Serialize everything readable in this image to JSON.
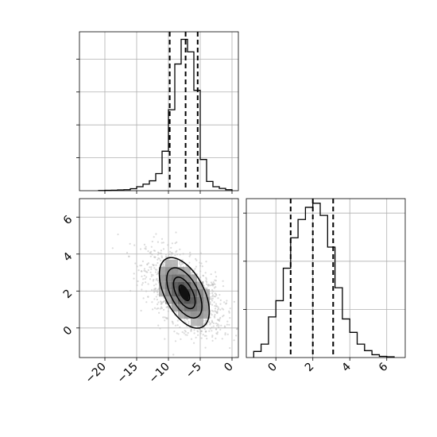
{
  "chart_data": [
    {
      "type": "histogram",
      "panel": "top-left",
      "variable": "x",
      "xlim": [
        -24,
        1
      ],
      "bin_width": 1,
      "bins": [
        [
          -21,
          -20,
          0.005
        ],
        [
          -20,
          -19,
          0.01
        ],
        [
          -19,
          -18,
          0.015
        ],
        [
          -18,
          -17,
          0.025
        ],
        [
          -17,
          -16,
          0.03
        ],
        [
          -16,
          -15,
          0.06
        ],
        [
          -15,
          -14,
          0.12
        ],
        [
          -14,
          -13,
          0.2
        ],
        [
          -13,
          -12,
          0.3
        ],
        [
          -12,
          -11,
          0.52
        ],
        [
          -11,
          -10,
          1.2
        ],
        [
          -10,
          -9,
          2.46
        ],
        [
          -9,
          -8,
          3.85
        ],
        [
          -8,
          -7,
          4.6
        ],
        [
          -7,
          -6,
          4.22
        ],
        [
          -6,
          -5,
          3.05
        ],
        [
          -5,
          -4,
          0.95
        ],
        [
          -4,
          -3,
          0.28
        ],
        [
          -3,
          -2,
          0.12
        ],
        [
          -2,
          -1,
          0.07
        ],
        [
          -1,
          0,
          0.03
        ]
      ],
      "quantiles": [
        -9.8,
        -7.3,
        -5.4
      ],
      "grid": true
    },
    {
      "type": "histogram",
      "panel": "bottom-right",
      "variable": "y",
      "xlim": [
        -1.6,
        7.0
      ],
      "bin_width": 0.4,
      "bins": [
        [
          -1.2,
          -0.8,
          0.15
        ],
        [
          -0.8,
          -0.4,
          0.33
        ],
        [
          -0.4,
          0.0,
          1.0
        ],
        [
          0.0,
          0.4,
          1.4
        ],
        [
          0.4,
          0.8,
          2.2
        ],
        [
          0.8,
          1.2,
          2.95
        ],
        [
          1.2,
          1.6,
          3.4
        ],
        [
          1.6,
          2.0,
          3.7
        ],
        [
          2.0,
          2.4,
          3.8
        ],
        [
          2.4,
          2.8,
          3.5
        ],
        [
          2.8,
          3.2,
          2.72
        ],
        [
          3.2,
          3.6,
          1.72
        ],
        [
          3.6,
          4.0,
          0.95
        ],
        [
          4.0,
          4.4,
          0.62
        ],
        [
          4.4,
          4.8,
          0.33
        ],
        [
          4.8,
          5.2,
          0.17
        ],
        [
          5.2,
          5.6,
          0.07
        ],
        [
          5.6,
          6.0,
          0.03
        ],
        [
          6.0,
          6.4,
          0.02
        ]
      ],
      "quantiles": [
        0.8,
        2.0,
        3.1
      ],
      "xticks": [
        "0",
        "2",
        "4",
        "6"
      ],
      "grid": true
    },
    {
      "type": "scatter",
      "panel": "bottom-left",
      "variables": [
        "x",
        "y"
      ],
      "xlim": [
        -24,
        1
      ],
      "ylim": [
        -1.6,
        7.0
      ],
      "center": [
        -7.5,
        1.9
      ],
      "spread": [
        3.0,
        1.1
      ],
      "correlation": -0.55,
      "point_count": 1400,
      "contour_levels": [
        {
          "rx": [
            3.6,
            1.4
          ],
          "ry": [
            1.9,
            0.75
          ]
        },
        {
          "rx": [
            2.5,
            1.0
          ],
          "ry": [
            1.35,
            0.5
          ]
        },
        {
          "rx": [
            1.5,
            0.6
          ],
          "ry": [
            0.85,
            0.3
          ]
        },
        {
          "rx": [
            0.7,
            0.3
          ],
          "ry": [
            0.42,
            0.15
          ]
        }
      ],
      "xticks": [
        "−20",
        "−15",
        "−10",
        "−5",
        "0"
      ],
      "yticks": [
        "0",
        "2",
        "4",
        "6"
      ],
      "grid": true
    }
  ]
}
